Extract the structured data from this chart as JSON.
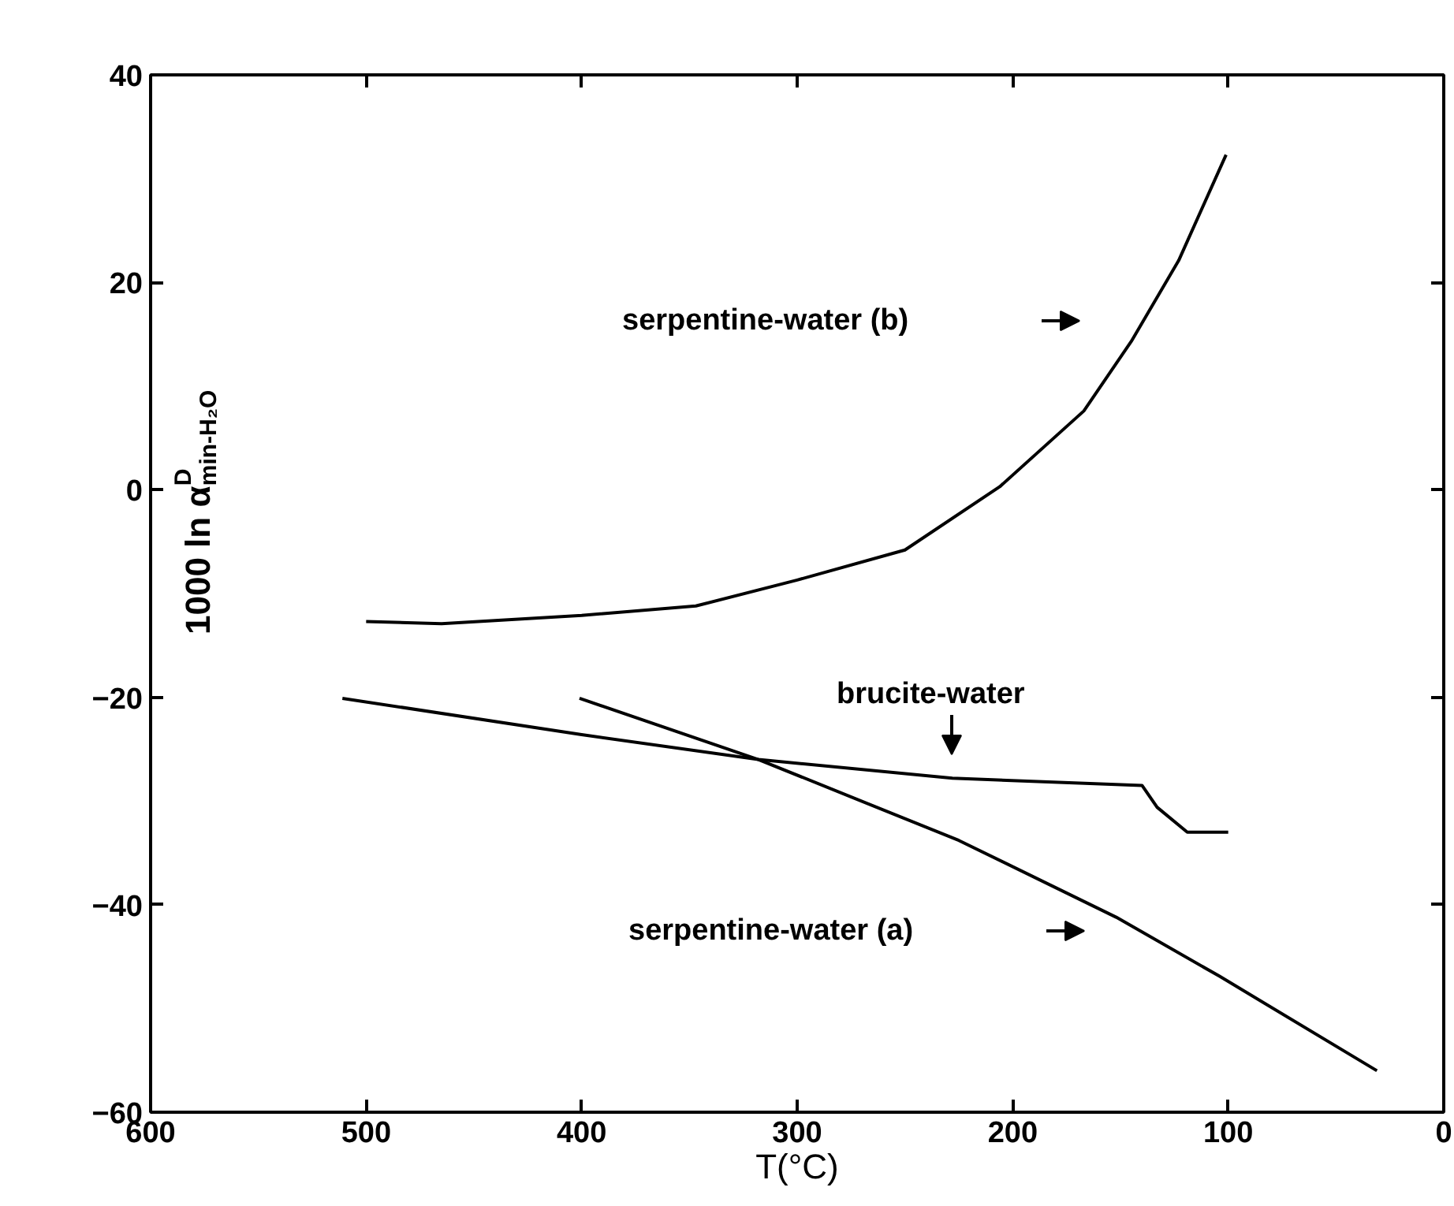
{
  "chart_data": {
    "type": "line",
    "xlabel": "T(°C)",
    "ylabel": "1000 ln α$^{D}$$_{min-H₂O}$",
    "xlim": [
      600,
      0
    ],
    "xticks": [
      600,
      500,
      400,
      300,
      200,
      100,
      0
    ],
    "ylim": [
      -60,
      40
    ],
    "yticks": [
      -60,
      -40,
      -20,
      0,
      20,
      40
    ],
    "grid": false,
    "marker": "none",
    "line_style": "solid",
    "series": [
      {
        "color": "#000000",
        "x": [
          500,
          465,
          400,
          347,
          300,
          250,
          206,
          167,
          145,
          123,
          101
        ],
        "values": [
          -12.7,
          -12.9,
          -12.1,
          -11.2,
          -8.7,
          -5.8,
          0.3,
          7.6,
          14.3,
          22.1,
          32.3
        ]
      },
      {
        "color": "#000000",
        "x": [
          511,
          400,
          318,
          228,
          140,
          133,
          119,
          100
        ],
        "values": [
          -20.1,
          -23.6,
          -26.0,
          -27.8,
          -28.5,
          -30.6,
          -33.0,
          -33.0
        ]
      },
      {
        "color": "#000000",
        "x": [
          401,
          318,
          225,
          152,
          104,
          31
        ],
        "values": [
          -20.1,
          -26.0,
          -33.8,
          -41.2,
          -46.9,
          -56.0
        ]
      }
    ],
    "annotations": [
      "serpentine-water (b)",
      "brucite-water",
      "serpentine-water (a)"
    ]
  }
}
